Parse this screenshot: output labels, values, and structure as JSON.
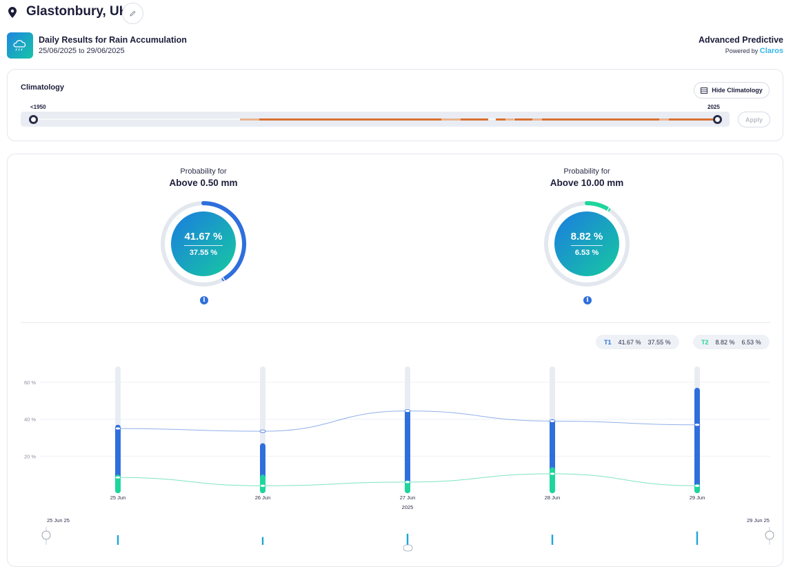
{
  "header": {
    "location": "Glastonbury, UK",
    "report_title": "Daily Results for Rain Accumulation",
    "date_from": "25/06/2025",
    "date_sep": "to",
    "date_to": "29/06/2025",
    "brand_title": "Advanced Predictive",
    "powered_by": "Powered by",
    "brand_name": "Claros"
  },
  "climatology": {
    "label": "Climatology",
    "hide_button": "Hide Climatology",
    "year_start": "<1950",
    "year_end": "2025",
    "apply_button": "Apply"
  },
  "probabilities": [
    {
      "label": "Probability for",
      "threshold": "Above 0.50 mm",
      "primary": "41.67 %",
      "secondary": "37.55 %",
      "fraction": 0.4167,
      "color": "#2f6fdc"
    },
    {
      "label": "Probability for",
      "threshold": "Above 10.00 mm",
      "primary": "8.82 %",
      "secondary": "6.53 %",
      "fraction": 0.0882,
      "color": "#1ed69c"
    }
  ],
  "legend": {
    "t1": {
      "tag": "T1",
      "v1": "41.67 %",
      "v2": "37.55 %",
      "color": "#2f6fdc"
    },
    "t2": {
      "tag": "T2",
      "v1": "8.82 %",
      "v2": "6.53 %",
      "color": "#1ed69c"
    }
  },
  "chart_data": {
    "type": "bar",
    "categories": [
      "25 Jun",
      "26 Jun",
      "27 Jun",
      "28 Jun",
      "29 Jun"
    ],
    "x_group_label": "2025",
    "y_ticks": [
      "20 %",
      "40 %",
      "60 %"
    ],
    "ylim": [
      0,
      70
    ],
    "series": [
      {
        "name": "T1",
        "color": "#2f6fdc",
        "bar_top": [
          37,
          27,
          45,
          40,
          57
        ],
        "line": [
          35,
          33.5,
          44.5,
          39,
          37
        ]
      },
      {
        "name": "T2",
        "color": "#1ed69c",
        "bar_top": [
          10,
          10,
          6,
          14,
          5
        ],
        "line": [
          8.5,
          4,
          6,
          10.5,
          4
        ]
      }
    ],
    "grid": true
  },
  "navigator": {
    "start_label": "25 Jun 25",
    "end_label": "29 Jun 25"
  }
}
